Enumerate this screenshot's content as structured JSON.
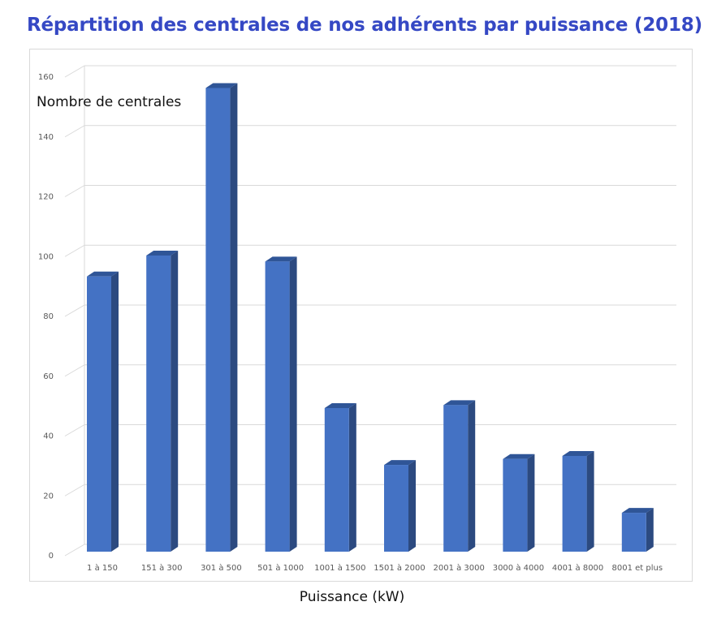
{
  "chart_data": {
    "type": "bar",
    "title": "Répartition des centrales de nos adhérents par puissance (2018)",
    "xlabel": "Puissance (kW)",
    "ylabel": "Nombre de centrales",
    "categories": [
      "1 à 150",
      "151 à 300",
      "301 à 500",
      "501 à 1000",
      "1001 à 1500",
      "1501 à 2000",
      "2001 à 3000",
      "3000 à 4000",
      "4001 à 8000",
      "8001 et plus"
    ],
    "values": [
      92,
      99,
      155,
      97,
      48,
      29,
      49,
      31,
      32,
      13
    ],
    "ylim": [
      0,
      160
    ],
    "yticks": [
      0,
      20,
      40,
      60,
      80,
      100,
      120,
      140,
      160
    ],
    "grid": true,
    "legend": "none",
    "style": "3d-column",
    "colors": {
      "front": "#4472c4",
      "side": "#2c4a80",
      "top": "#2f5597",
      "title": "#3548c4",
      "grid": "#d9d9d9"
    }
  }
}
